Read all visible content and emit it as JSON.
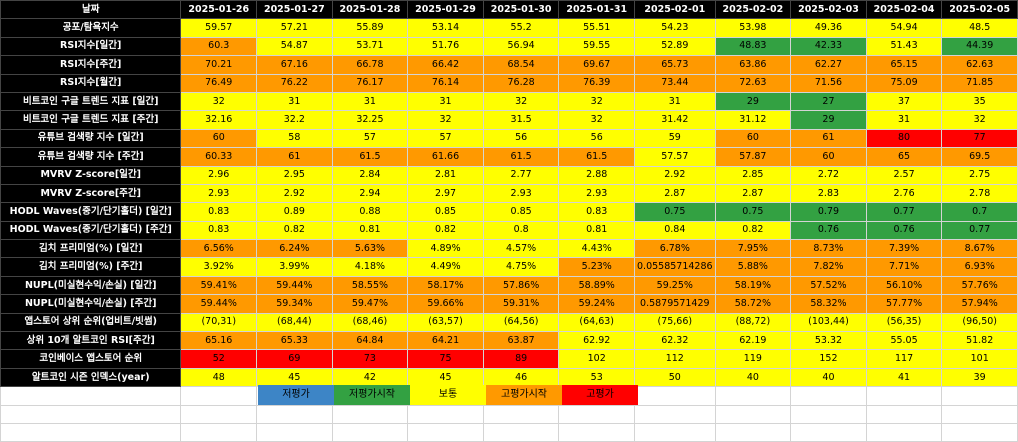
{
  "header": {
    "label": "날짜",
    "dates": [
      "2025-01-26",
      "2025-01-27",
      "2025-01-28",
      "2025-01-29",
      "2025-01-30",
      "2025-01-31",
      "2025-02-01",
      "2025-02-02",
      "2025-02-03",
      "2025-02-04",
      "2025-02-05"
    ]
  },
  "rows": [
    {
      "label": "공포/탐욕지수",
      "values": [
        "59.57",
        "57.21",
        "55.89",
        "53.14",
        "55.2",
        "55.51",
        "54.23",
        "53.98",
        "49.36",
        "54.94",
        "48.5"
      ],
      "colors": "YYYYYYYYYYY"
    },
    {
      "label": "RSI지수[일간]",
      "values": [
        "60.3",
        "54.87",
        "53.71",
        "51.76",
        "56.94",
        "59.55",
        "52.89",
        "48.83",
        "42.33",
        "51.43",
        "44.39"
      ],
      "colors": "OYYYYYYGGYG"
    },
    {
      "label": "RSI지수[주간]",
      "values": [
        "70.21",
        "67.16",
        "66.78",
        "66.42",
        "68.54",
        "69.67",
        "65.73",
        "63.86",
        "62.27",
        "65.15",
        "62.63"
      ],
      "colors": "OOOOOOOOOOO"
    },
    {
      "label": "RSI지수[월간]",
      "values": [
        "76.49",
        "76.22",
        "76.17",
        "76.14",
        "76.28",
        "76.39",
        "73.44",
        "72.63",
        "71.56",
        "75.09",
        "71.85"
      ],
      "colors": "OOOOOOOOOOO"
    },
    {
      "label": "비트코인 구글 트렌드 지표 [일간]",
      "values": [
        "32",
        "31",
        "31",
        "31",
        "32",
        "32",
        "31",
        "29",
        "27",
        "37",
        "35"
      ],
      "colors": "YYYYYYYGGYY"
    },
    {
      "label": "비트코인 구글 트렌드 지표 [주간]",
      "values": [
        "32.16",
        "32.2",
        "32.25",
        "32",
        "31.5",
        "32",
        "31.42",
        "31.12",
        "29",
        "31",
        "32"
      ],
      "colors": "YYYYYYYYGYY"
    },
    {
      "label": "유튜브 검색량 지수 [일간]",
      "values": [
        "60",
        "58",
        "57",
        "57",
        "56",
        "56",
        "59",
        "60",
        "61",
        "80",
        "77"
      ],
      "colors": "OYYYYYYOORR"
    },
    {
      "label": "유튜브 검색량 지수 [주간]",
      "values": [
        "60.33",
        "61",
        "61.5",
        "61.66",
        "61.5",
        "61.5",
        "57.57",
        "57.87",
        "60",
        "65",
        "69.5"
      ],
      "colors": "OOOOOOYOOOO"
    },
    {
      "label": "MVRV Z-score[일간]",
      "values": [
        "2.96",
        "2.95",
        "2.84",
        "2.81",
        "2.77",
        "2.88",
        "2.92",
        "2.85",
        "2.72",
        "2.57",
        "2.75"
      ],
      "colors": "YYYYYYYYYYY"
    },
    {
      "label": "MVRV Z-score[주간]",
      "values": [
        "2.93",
        "2.92",
        "2.94",
        "2.97",
        "2.93",
        "2.93",
        "2.87",
        "2.87",
        "2.83",
        "2.76",
        "2.78"
      ],
      "colors": "YYYYYYYYYYY"
    },
    {
      "label": "HODL Waves(중기/단기홀더) [일간]",
      "values": [
        "0.83",
        "0.89",
        "0.88",
        "0.85",
        "0.85",
        "0.83",
        "0.75",
        "0.75",
        "0.79",
        "0.77",
        "0.7"
      ],
      "colors": "YYYYYYGGGGG"
    },
    {
      "label": "HODL Waves(중기/단기홀더) [주간]",
      "values": [
        "0.83",
        "0.82",
        "0.81",
        "0.82",
        "0.8",
        "0.81",
        "0.84",
        "0.82",
        "0.76",
        "0.76",
        "0.77"
      ],
      "colors": "YYYYYYYYGGG"
    },
    {
      "label": "김치 프리미엄(%) [일간]",
      "values": [
        "6.56%",
        "6.24%",
        "5.63%",
        "4.89%",
        "4.57%",
        "4.43%",
        "6.78%",
        "7.95%",
        "8.73%",
        "7.39%",
        "8.67%"
      ],
      "colors": "OOOYYYOOOOO"
    },
    {
      "label": "김치 프리미엄(%) [주간]",
      "values": [
        "3.92%",
        "3.99%",
        "4.18%",
        "4.49%",
        "4.75%",
        "5.23%",
        "0.05585714286",
        "5.88%",
        "7.82%",
        "7.71%",
        "6.93%"
      ],
      "colors": "YYYYYOOOOOO"
    },
    {
      "label": "NUPL(미실현수익/손실) [일간]",
      "values": [
        "59.41%",
        "59.44%",
        "58.55%",
        "58.17%",
        "57.86%",
        "58.89%",
        "59.25%",
        "58.19%",
        "57.52%",
        "56.10%",
        "57.76%"
      ],
      "colors": "OOOOOOOOOOO"
    },
    {
      "label": "NUPL(미실현수익/손실) [주간]",
      "values": [
        "59.44%",
        "59.34%",
        "59.47%",
        "59.66%",
        "59.31%",
        "59.24%",
        "0.5879571429",
        "58.72%",
        "58.32%",
        "57.77%",
        "57.94%"
      ],
      "colors": "OOOOOOOOOOO"
    },
    {
      "label": "앱스토어 상위 순위(업비트/빗썸)",
      "values": [
        "(70,31)",
        "(68,44)",
        "(68,46)",
        "(63,57)",
        "(64,56)",
        "(64,63)",
        "(75,66)",
        "(88,72)",
        "(103,44)",
        "(56,35)",
        "(96,50)"
      ],
      "colors": "YYYYYYYYYYY"
    },
    {
      "label": "상위 10개 알트코인 RSI[주간]",
      "values": [
        "65.16",
        "65.33",
        "64.84",
        "64.21",
        "63.87",
        "62.92",
        "62.32",
        "62.19",
        "53.32",
        "55.05",
        "51.82"
      ],
      "colors": "OOOOOYYYYYY"
    },
    {
      "label": "코인베이스 앱스토어 순위",
      "values": [
        "52",
        "69",
        "73",
        "75",
        "89",
        "102",
        "112",
        "119",
        "152",
        "117",
        "101"
      ],
      "colors": "RRRRRYYYYYY"
    },
    {
      "label": "알트코인 시즌 인덱스(year)",
      "values": [
        "48",
        "45",
        "42",
        "45",
        "46",
        "53",
        "50",
        "40",
        "40",
        "41",
        "39"
      ],
      "colors": "YYYYYYYYYYY"
    }
  ],
  "legend": [
    {
      "label": "저평가",
      "color": "#3d85c6"
    },
    {
      "label": "저평가시작",
      "color": "#33a142"
    },
    {
      "label": "보통",
      "color": "#ffff00"
    },
    {
      "label": "고평가시작",
      "color": "#ff9900"
    },
    {
      "label": "고평가",
      "color": "#ff0000"
    }
  ]
}
